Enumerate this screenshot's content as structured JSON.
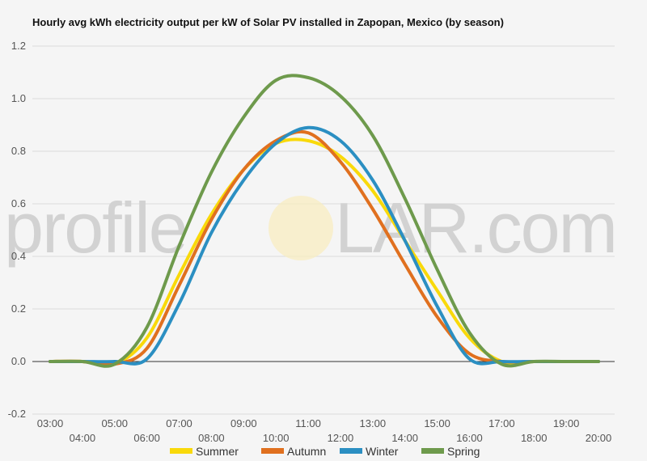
{
  "chart_data": {
    "type": "line",
    "title": "Hourly avg kWh electricity output per kW of Solar PV installed in Zapopan, Mexico (by season)",
    "xlabel": "",
    "ylabel": "",
    "ylim": [
      -0.2,
      1.2
    ],
    "yticks": [
      -0.2,
      0.0,
      0.2,
      0.4,
      0.6,
      0.8,
      1.0,
      1.2
    ],
    "x": [
      "03:00",
      "04:00",
      "05:00",
      "06:00",
      "07:00",
      "08:00",
      "09:00",
      "10:00",
      "11:00",
      "12:00",
      "13:00",
      "14:00",
      "15:00",
      "16:00",
      "17:00",
      "18:00",
      "19:00",
      "20:00"
    ],
    "grid": true,
    "legend_position": "bottom",
    "series": [
      {
        "name": "Summer",
        "color": "#f9d90a",
        "values": [
          0,
          0,
          -0.01,
          0.09,
          0.33,
          0.56,
          0.73,
          0.83,
          0.84,
          0.78,
          0.65,
          0.46,
          0.27,
          0.09,
          0.0,
          0.0,
          0.0,
          0.0
        ]
      },
      {
        "name": "Autumn",
        "color": "#e0701f",
        "values": [
          0,
          0,
          -0.01,
          0.05,
          0.29,
          0.54,
          0.73,
          0.84,
          0.87,
          0.76,
          0.58,
          0.37,
          0.17,
          0.03,
          0.0,
          0.0,
          0.0,
          0.0
        ]
      },
      {
        "name": "Winter",
        "color": "#2b8fc2",
        "values": [
          0,
          0,
          0.0,
          0.01,
          0.22,
          0.49,
          0.69,
          0.83,
          0.89,
          0.84,
          0.69,
          0.46,
          0.21,
          0.01,
          0.0,
          0.0,
          0.0,
          0.0
        ]
      },
      {
        "name": "Spring",
        "color": "#6e9a4c",
        "values": [
          0,
          0,
          -0.01,
          0.13,
          0.44,
          0.72,
          0.93,
          1.07,
          1.08,
          1.01,
          0.86,
          0.62,
          0.35,
          0.11,
          -0.01,
          0.0,
          0.0,
          0.0
        ]
      }
    ]
  },
  "watermark": {
    "text_left": "profile",
    "text_right": "LAR.com"
  }
}
